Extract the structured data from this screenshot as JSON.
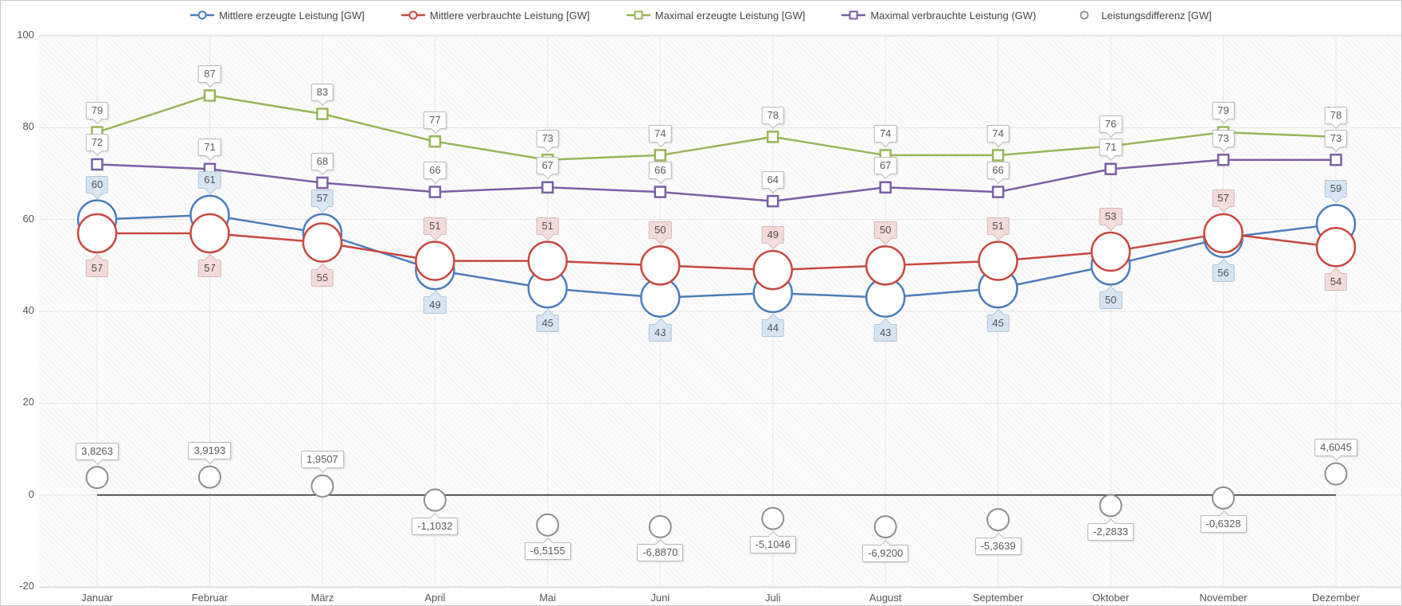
{
  "legend": {
    "items": [
      {
        "label": "Mittlere erzeugte Leistung [GW]",
        "color": "#4b7dba",
        "marker": "circle"
      },
      {
        "label": "Mittlere verbrauchte Leistung [GW]",
        "color": "#c7483f",
        "marker": "circle"
      },
      {
        "label": "Maximal erzeugte Leistung [GW]",
        "color": "#98b65a",
        "marker": "square"
      },
      {
        "label": "Maximal verbrauchte Leistung (GW)",
        "color": "#7a5fa6",
        "marker": "square"
      },
      {
        "label": "Leistungsdifferenz [GW]",
        "color": "#8d8d8d",
        "marker": "circle-plain"
      }
    ]
  },
  "chart_data": {
    "type": "line",
    "title": "",
    "xlabel": "",
    "ylabel": "",
    "ylim": [
      -20,
      100
    ],
    "grid": true,
    "legend_position": "top",
    "categories": [
      "Januar",
      "Februar",
      "März",
      "April",
      "Mai",
      "Juni",
      "Juli",
      "August",
      "September",
      "Oktober",
      "November",
      "Dezember"
    ],
    "y_axis": {
      "ticks": [
        100,
        80,
        60,
        40,
        20,
        0,
        -20
      ]
    },
    "series": [
      {
        "name": "Mittlere erzeugte Leistung [GW]",
        "color": "#4b7dba",
        "marker": "circle-large",
        "line": true,
        "label_style": "blue",
        "label_placement": "compare:1",
        "values": [
          60,
          61,
          57,
          49,
          45,
          43,
          44,
          43,
          45,
          50,
          56,
          59
        ]
      },
      {
        "name": "Mittlere verbrauchte Leistung [GW]",
        "color": "#c7483f",
        "marker": "circle-large",
        "line": true,
        "label_style": "pink",
        "label_placement": "compare:0",
        "values": [
          57,
          57,
          55,
          51,
          51,
          50,
          49,
          50,
          51,
          53,
          57,
          54
        ]
      },
      {
        "name": "Maximal erzeugte Leistung [GW]",
        "color": "#98b65a",
        "marker": "square",
        "line": true,
        "label_style": "white",
        "label_placement": "above",
        "values": [
          79,
          87,
          83,
          77,
          73,
          74,
          78,
          74,
          74,
          76,
          79,
          78
        ]
      },
      {
        "name": "Maximal verbrauchte Leistung (GW)",
        "color": "#7a5fa6",
        "marker": "square",
        "line": true,
        "label_style": "white",
        "label_placement": "above",
        "values": [
          72,
          71,
          68,
          66,
          67,
          66,
          64,
          67,
          66,
          71,
          73,
          73
        ]
      },
      {
        "name": "Leistungsdifferenz [GW]",
        "color": "#8d8d8d",
        "marker": "circle-medium",
        "line": false,
        "zero_line": true,
        "label_style": "white",
        "label_placement": "sign",
        "values": [
          3.8263,
          3.9193,
          1.9507,
          -1.1032,
          -6.5155,
          -6.887,
          -5.1046,
          -6.92,
          -5.3639,
          -2.2833,
          -0.6328,
          4.6045
        ],
        "labels": [
          "3,8263",
          "3,9193",
          "1,9507",
          "-1,1032",
          "-6,5155",
          "-6,8870",
          "-5,1046",
          "-6,9200",
          "-5,3639",
          "-2,2833",
          "-0,6328",
          "4,6045"
        ]
      }
    ]
  }
}
